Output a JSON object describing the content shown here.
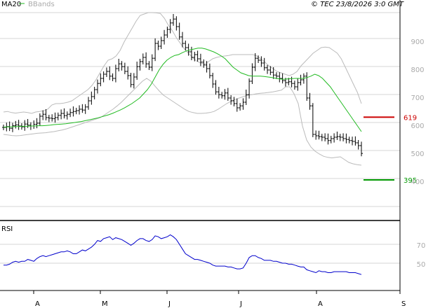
{
  "header": {
    "legend_ma": "MA20",
    "legend_bb": "BBands",
    "copyright": "© TEC 23/8/2026 3:0 GMT"
  },
  "colors": {
    "ma": "#22bb22",
    "bbands": "#bbbbbb",
    "bars": "#000000",
    "rsi": "#0000cc",
    "resistance": "#cc0000",
    "support": "#009900",
    "grid": "#d4d4d4",
    "axis_text": "#aaaaaa"
  },
  "chart_data": [
    {
      "type": "ohlc",
      "title": "",
      "ylim": [
        250,
        1020
      ],
      "y_ticks": [
        400,
        500,
        600,
        700,
        800,
        900
      ],
      "x_ticks": [
        "A",
        "M",
        "J",
        "J",
        "A",
        "S"
      ],
      "levels": [
        {
          "label": "619",
          "value": 619,
          "color": "#cc0000"
        },
        {
          "label": "395",
          "value": 395,
          "color": "#009900"
        }
      ],
      "close": [
        595,
        598,
        592,
        601,
        604,
        600,
        597,
        607,
        603,
        600,
        606,
        610,
        635,
        642,
        630,
        628,
        626,
        630,
        638,
        645,
        637,
        642,
        648,
        652,
        655,
        660,
        657,
        668,
        690,
        705,
        730,
        752,
        770,
        785,
        795,
        778,
        770,
        805,
        822,
        812,
        795,
        780,
        748,
        775,
        812,
        830,
        845,
        822,
        810,
        842,
        895,
        885,
        905,
        925,
        945,
        968,
        982,
        955,
        918,
        895,
        880,
        865,
        845,
        855,
        840,
        828,
        818,
        805,
        780,
        750,
        722,
        712,
        708,
        718,
        700,
        690,
        680,
        665,
        672,
        685,
        712,
        760,
        810,
        842,
        835,
        825,
        808,
        800,
        792,
        782,
        778,
        770,
        762,
        755,
        758,
        752,
        740,
        755,
        765,
        778,
        700,
        672,
        570,
        565,
        562,
        560,
        555,
        548,
        555,
        560,
        562,
        560,
        555,
        552,
        548,
        545,
        540,
        530,
        502
      ],
      "ma20": [
        596,
        597,
        597,
        598,
        598,
        599,
        599,
        600,
        600,
        601,
        601,
        602,
        603,
        605,
        606,
        607,
        608,
        610,
        612,
        614,
        616,
        619,
        622,
        625,
        628,
        632,
        636,
        640,
        645,
        651,
        657,
        664,
        672,
        680,
        690,
        700,
        715,
        730,
        750,
        775,
        800,
        820,
        835,
        845,
        852,
        855,
        862,
        868,
        872,
        875,
        878,
        878,
        875,
        870,
        865,
        858,
        850,
        840,
        825,
        810,
        800,
        790,
        785,
        780,
        778,
        778,
        778,
        777,
        775,
        773,
        770,
        768,
        767,
        768,
        769,
        770,
        770,
        770,
        773,
        778,
        785,
        780,
        770,
        755,
        740,
        720,
        700,
        680,
        660,
        640,
        620,
        600,
        580
      ],
      "bb_upper": [
        650,
        652,
        648,
        646,
        648,
        650,
        648,
        645,
        650,
        652,
        655,
        660,
        675,
        680,
        680,
        682,
        685,
        690,
        700,
        710,
        720,
        730,
        745,
        765,
        790,
        815,
        835,
        840,
        850,
        870,
        900,
        925,
        950,
        975,
        995,
        1000,
        1005,
        1005,
        1004,
        1002,
        985,
        960,
        940,
        915,
        895,
        875,
        860,
        845,
        832,
        825,
        822,
        830,
        840,
        845,
        848,
        850,
        852,
        855,
        855,
        855,
        855,
        855,
        855,
        850,
        840,
        828,
        815,
        805,
        795,
        790,
        785,
        780,
        785,
        795,
        815,
        830,
        845,
        860,
        870,
        880,
        882,
        880,
        870,
        860,
        840,
        810,
        780,
        750,
        720,
        680
      ],
      "bb_lower": [
        570,
        568,
        566,
        565,
        566,
        568,
        570,
        572,
        574,
        575,
        576,
        578,
        580,
        583,
        586,
        590,
        595,
        600,
        605,
        610,
        615,
        620,
        625,
        630,
        640,
        650,
        660,
        672,
        685,
        700,
        715,
        730,
        745,
        760,
        770,
        760,
        742,
        725,
        710,
        700,
        690,
        680,
        670,
        660,
        652,
        648,
        645,
        645,
        646,
        648,
        652,
        660,
        670,
        680,
        688,
        695,
        700,
        705,
        710,
        712,
        715,
        717,
        718,
        720,
        722,
        725,
        728,
        740,
        740,
        715,
        680,
        600,
        550,
        525,
        510,
        500,
        492,
        488,
        486,
        488,
        490,
        480,
        470,
        465,
        462,
        460
      ]
    },
    {
      "type": "line",
      "title": "RSI",
      "y_ticks": [
        50,
        70
      ],
      "values": [
        48,
        48,
        49,
        51,
        52,
        51,
        52,
        52,
        54,
        53,
        52,
        55,
        57,
        58,
        57,
        58,
        59,
        60,
        61,
        62,
        62,
        63,
        62,
        60,
        60,
        62,
        64,
        63,
        65,
        67,
        70,
        74,
        73,
        76,
        77,
        78,
        75,
        77,
        76,
        75,
        73,
        71,
        69,
        71,
        74,
        76,
        76,
        74,
        73,
        75,
        79,
        78,
        76,
        77,
        78,
        80,
        78,
        75,
        70,
        65,
        60,
        58,
        56,
        54,
        54,
        53,
        52,
        51,
        50,
        48,
        47,
        47,
        47,
        47,
        46,
        46,
        45,
        44,
        44,
        45,
        50,
        56,
        58,
        58,
        56,
        55,
        53,
        53,
        53,
        52,
        52,
        51,
        50,
        50,
        49,
        49,
        48,
        47,
        46,
        46,
        43,
        42,
        41,
        40,
        42,
        41,
        41,
        40,
        40,
        41,
        41,
        41,
        41,
        41,
        40,
        40,
        40,
        39,
        38
      ]
    }
  ]
}
